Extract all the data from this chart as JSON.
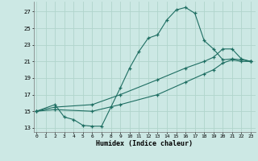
{
  "xlabel": "Humidex (Indice chaleur)",
  "bg_color": "#cce8e4",
  "grid_color": "#b0d4cc",
  "line_color": "#1e6e62",
  "marker": "+",
  "yticks": [
    13,
    15,
    17,
    19,
    21,
    23,
    25,
    27
  ],
  "xticks": [
    0,
    1,
    2,
    3,
    4,
    5,
    6,
    7,
    8,
    9,
    10,
    11,
    12,
    13,
    14,
    15,
    16,
    17,
    18,
    19,
    20,
    21,
    22,
    23
  ],
  "ylim": [
    12.5,
    28.2
  ],
  "xlim": [
    -0.3,
    23.5
  ],
  "curve1_x": [
    0,
    2,
    3,
    4,
    5,
    6,
    7,
    8,
    9,
    10,
    11,
    12,
    13,
    14,
    15,
    16,
    17,
    18,
    19,
    20,
    21,
    22,
    23
  ],
  "curve1_y": [
    15.0,
    15.8,
    14.3,
    14.0,
    13.3,
    13.2,
    13.2,
    15.5,
    17.8,
    20.2,
    22.2,
    23.8,
    24.2,
    26.0,
    27.2,
    27.5,
    26.8,
    23.5,
    22.5,
    21.2,
    21.3,
    21.2,
    21.0
  ],
  "curve2_x": [
    0,
    2,
    6,
    9,
    13,
    16,
    18,
    19,
    20,
    21,
    22,
    23
  ],
  "curve2_y": [
    15.0,
    15.5,
    15.8,
    17.0,
    18.8,
    20.2,
    21.0,
    21.5,
    22.5,
    22.5,
    21.3,
    21.0
  ],
  "curve3_x": [
    0,
    2,
    6,
    9,
    13,
    16,
    18,
    19,
    20,
    21,
    22,
    23
  ],
  "curve3_y": [
    15.0,
    15.2,
    15.0,
    15.8,
    17.0,
    18.5,
    19.5,
    20.0,
    20.8,
    21.2,
    21.0,
    21.0
  ]
}
